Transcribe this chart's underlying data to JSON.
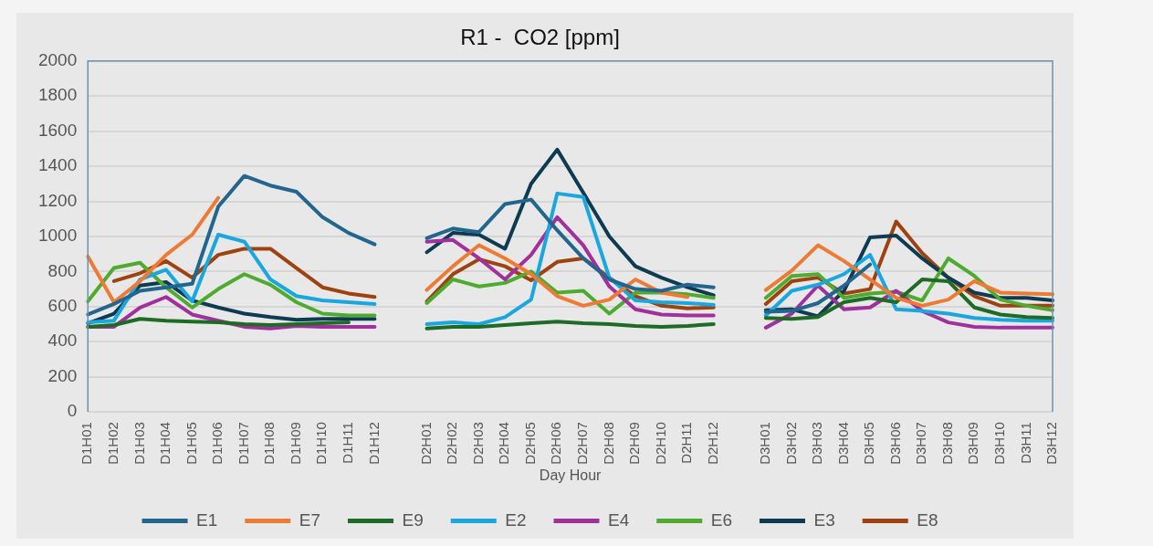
{
  "chart_data": {
    "type": "line",
    "title": "R1 -  CO2 [ppm]",
    "xlabel": "Day Hour",
    "categories": [
      "D1H01",
      "D1H02",
      "D1H03",
      "D1H04",
      "D1H05",
      "D1H06",
      "D1H07",
      "D1H08",
      "D1H09",
      "D1H10",
      "D1H11",
      "D1H12",
      null,
      "D2H01",
      "D2H02",
      "D2H03",
      "D2H04",
      "D2H05",
      "D2H06",
      "D2H07",
      "D2H08",
      "D2H09",
      "D2H10",
      "D2H11",
      "D2H12",
      null,
      "D3H01",
      "D3H02",
      "D3H03",
      "D3H04",
      "D3H05",
      "D3H06",
      "D3H07",
      "D3H08",
      "D3H09",
      "D3H10",
      "D3H11",
      "D3H12"
    ],
    "ylim": [
      0,
      2000
    ],
    "yticks": [
      0,
      200,
      400,
      600,
      800,
      1000,
      1200,
      1400,
      1600,
      1800,
      2000
    ],
    "grid": "y",
    "legend": "bottom",
    "marker": "none",
    "line_style": "solid",
    "series": [
      {
        "name": "E1",
        "color": "#22668f",
        "values": [
          555,
          615,
          690,
          710,
          730,
          1170,
          1345,
          1290,
          1255,
          1110,
          1020,
          955,
          null,
          990,
          1045,
          1025,
          1185,
          1210,
          1035,
          875,
          755,
          700,
          690,
          725,
          710,
          null,
          570,
          575,
          620,
          720,
          840,
          null,
          null,
          null,
          null,
          null,
          null,
          null
        ]
      },
      {
        "name": "E7",
        "color": "#ee7b34",
        "values": [
          885,
          625,
          745,
          895,
          1010,
          1220,
          null,
          null,
          null,
          null,
          null,
          null,
          null,
          695,
          830,
          950,
          875,
          785,
          660,
          605,
          640,
          755,
          680,
          655,
          null,
          null,
          695,
          805,
          950,
          860,
          755,
          650,
          605,
          640,
          745,
          680,
          675,
          670
        ]
      },
      {
        "name": "E9",
        "color": "#1d6b24",
        "values": [
          485,
          495,
          530,
          520,
          515,
          510,
          500,
          495,
          500,
          505,
          510,
          null,
          null,
          475,
          485,
          485,
          495,
          505,
          515,
          505,
          500,
          490,
          485,
          490,
          500,
          null,
          535,
          530,
          540,
          625,
          650,
          625,
          755,
          745,
          595,
          555,
          540,
          535
        ]
      },
      {
        "name": "E2",
        "color": "#1aa6de",
        "values": [
          510,
          520,
          755,
          810,
          630,
          1010,
          970,
          755,
          660,
          635,
          625,
          615,
          null,
          500,
          510,
          500,
          540,
          640,
          1245,
          1225,
          765,
          635,
          625,
          620,
          610,
          null,
          550,
          690,
          725,
          785,
          895,
          585,
          575,
          560,
          535,
          525,
          520,
          520
        ]
      },
      {
        "name": "E4",
        "color": "#a0309c",
        "values": [
          485,
          485,
          595,
          655,
          555,
          520,
          485,
          475,
          490,
          485,
          485,
          485,
          null,
          970,
          980,
          875,
          755,
          895,
          1110,
          950,
          715,
          585,
          555,
          550,
          550,
          null,
          480,
          560,
          720,
          585,
          595,
          690,
          575,
          510,
          485,
          480,
          480,
          480
        ]
      },
      {
        "name": "E6",
        "color": "#4eab2f",
        "values": [
          630,
          820,
          850,
          710,
          595,
          700,
          785,
          725,
          625,
          560,
          550,
          550,
          null,
          620,
          755,
          715,
          735,
          800,
          680,
          690,
          560,
          680,
          680,
          670,
          650,
          null,
          650,
          775,
          785,
          650,
          675,
          685,
          635,
          875,
          775,
          640,
          605,
          580
        ]
      },
      {
        "name": "E3",
        "color": "#0e3a52",
        "values": [
          505,
          560,
          720,
          740,
          635,
          595,
          560,
          540,
          525,
          530,
          530,
          530,
          null,
          910,
          1020,
          1010,
          930,
          1300,
          1495,
          1250,
          1000,
          830,
          765,
          710,
          665,
          null,
          580,
          585,
          545,
          690,
          995,
          1005,
          875,
          765,
          680,
          650,
          650,
          635
        ]
      },
      {
        "name": "E8",
        "color": "#9e4210",
        "values": [
          null,
          745,
          790,
          860,
          765,
          895,
          930,
          930,
          820,
          710,
          675,
          655,
          null,
          630,
          785,
          870,
          830,
          750,
          855,
          875,
          765,
          660,
          605,
          590,
          595,
          null,
          615,
          745,
          765,
          675,
          700,
          1085,
          905,
          765,
          660,
          605,
          605,
          605
        ]
      }
    ]
  }
}
